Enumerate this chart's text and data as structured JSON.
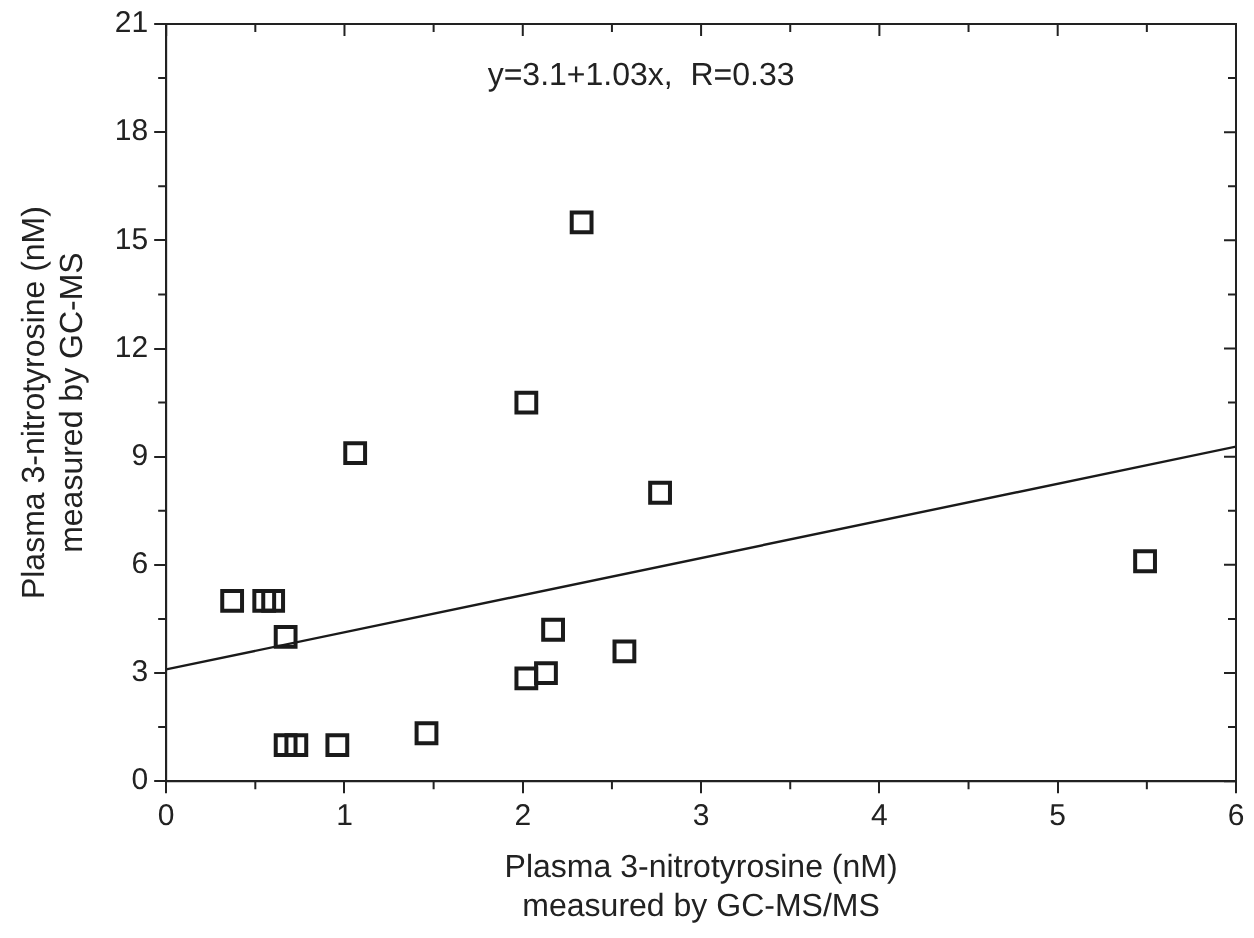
{
  "chart_data": {
    "type": "scatter",
    "xlabel": "Plasma 3-nitrotyrosine (nM)\nmeasured by GC-MS/MS",
    "ylabel": "Plasma 3-nitrotyrosine (nM)\nmeasured by GC-MS",
    "xlim": [
      0,
      6
    ],
    "xticks": [
      0,
      1,
      2,
      3,
      4,
      5,
      6
    ],
    "ylim": [
      0,
      21
    ],
    "yticks": [
      0,
      3,
      6,
      9,
      12,
      15,
      18,
      21
    ],
    "grid": false,
    "legend": false,
    "marker": "square",
    "annotations": [
      "y=3.1+1.03x,  R=0.33"
    ],
    "series": [
      {
        "color": "#1a1a1a",
        "x": [
          0.37,
          0.55,
          0.6,
          0.67,
          0.67,
          0.73,
          0.96,
          1.46,
          1.06,
          2.02,
          2.33,
          2.17,
          2.13,
          2.02,
          2.57,
          2.77,
          5.49
        ],
        "values": [
          5.0,
          5.0,
          5.0,
          4.0,
          1.0,
          1.0,
          1.0,
          1.33,
          9.1,
          10.5,
          15.5,
          4.2,
          3.0,
          2.85,
          3.6,
          8.0,
          6.1
        ]
      },
      {
        "type": "line",
        "color": "#1a1a1a",
        "line_style": "solid",
        "marker": "none",
        "x": [
          0,
          6
        ],
        "values": [
          3.1,
          9.28
        ]
      }
    ]
  }
}
